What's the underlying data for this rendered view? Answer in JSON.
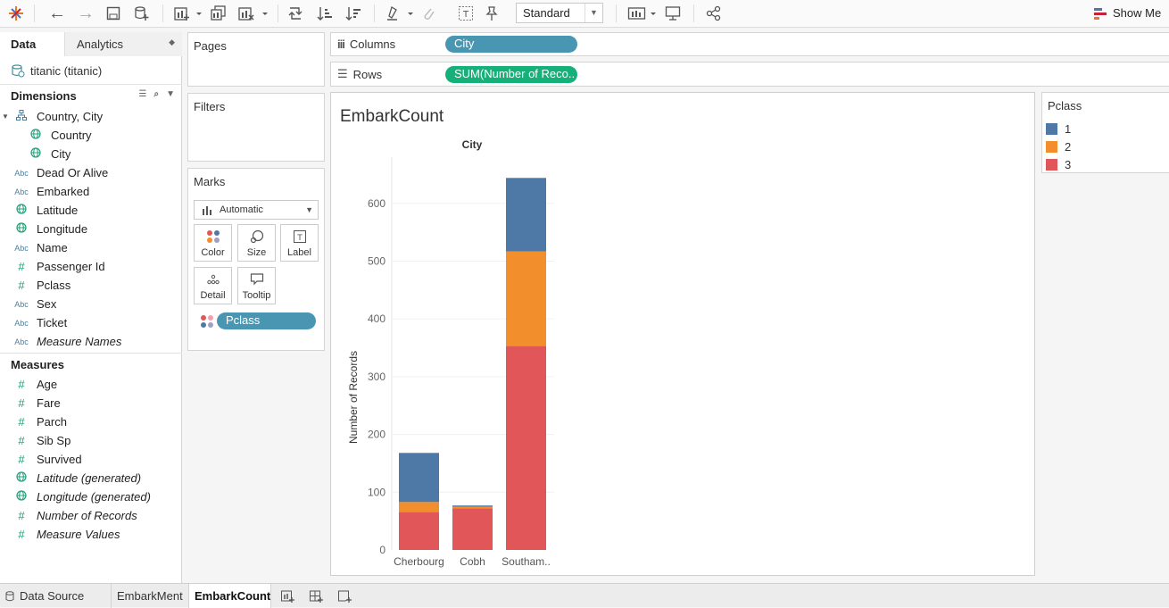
{
  "toolbar": {
    "mode_select": "Standard",
    "show_me": "Show Me"
  },
  "sidebar": {
    "tabs": {
      "data": "Data",
      "analytics": "Analytics"
    },
    "datasource": "titanic (titanic)",
    "dimensions_header": "Dimensions",
    "dimensions": [
      {
        "label": "Country, City",
        "icon": "hierarchy-icon"
      },
      {
        "label": "Country",
        "icon": "globe-icon"
      },
      {
        "label": "City",
        "icon": "globe-icon"
      },
      {
        "label": "Dead Or Alive",
        "icon": "abc-icon"
      },
      {
        "label": "Embarked",
        "icon": "abc-icon"
      },
      {
        "label": "Latitude",
        "icon": "globe-icon"
      },
      {
        "label": "Longitude",
        "icon": "globe-icon"
      },
      {
        "label": "Name",
        "icon": "abc-icon"
      },
      {
        "label": "Passenger Id",
        "icon": "hash-icon"
      },
      {
        "label": "Pclass",
        "icon": "hash-icon"
      },
      {
        "label": "Sex",
        "icon": "abc-icon"
      },
      {
        "label": "Ticket",
        "icon": "abc-icon"
      },
      {
        "label": "Measure Names",
        "icon": "abc-icon"
      }
    ],
    "measures_header": "Measures",
    "measures": [
      {
        "label": "Age",
        "icon": "hash-icon"
      },
      {
        "label": "Fare",
        "icon": "hash-icon"
      },
      {
        "label": "Parch",
        "icon": "hash-icon"
      },
      {
        "label": "Sib Sp",
        "icon": "hash-icon"
      },
      {
        "label": "Survived",
        "icon": "hash-icon"
      },
      {
        "label": "Latitude (generated)",
        "icon": "globe-icon"
      },
      {
        "label": "Longitude (generated)",
        "icon": "globe-icon"
      },
      {
        "label": "Number of Records",
        "icon": "hash-icon"
      },
      {
        "label": "Measure Values",
        "icon": "hash-icon"
      }
    ]
  },
  "cards": {
    "pages": "Pages",
    "filters": "Filters",
    "marks": "Marks",
    "marks_type": "Automatic",
    "marks_buttons": [
      "Color",
      "Size",
      "Label",
      "Detail",
      "Tooltip"
    ],
    "marks_pill": "Pclass"
  },
  "shelves": {
    "columns_label": "Columns",
    "columns_pill": "City",
    "rows_label": "Rows",
    "rows_pill": "SUM(Number of Reco.."
  },
  "legend": {
    "title": "Pclass",
    "items": [
      {
        "label": "1",
        "color": "#4e79a7"
      },
      {
        "label": "2",
        "color": "#f28e2b"
      },
      {
        "label": "3",
        "color": "#e15759"
      }
    ]
  },
  "bottom_tabs": [
    "Data Source",
    "EmbarkMent",
    "EmbarkCount"
  ],
  "chart_data": {
    "type": "bar",
    "stacked": true,
    "title": "EmbarkCount",
    "column_header": "City",
    "ylabel": "Number of Records",
    "categories": [
      "Cherbourg",
      "Cobh",
      "Southam.."
    ],
    "ylim": [
      0,
      700
    ],
    "yticks": [
      0,
      100,
      200,
      300,
      400,
      500,
      600
    ],
    "series": [
      {
        "name": "3",
        "color": "#e15759",
        "values": [
          66,
          72,
          353
        ]
      },
      {
        "name": "2",
        "color": "#f28e2b",
        "values": [
          17,
          3,
          164
        ]
      },
      {
        "name": "1",
        "color": "#4e79a7",
        "values": [
          85,
          2,
          127
        ]
      }
    ]
  }
}
